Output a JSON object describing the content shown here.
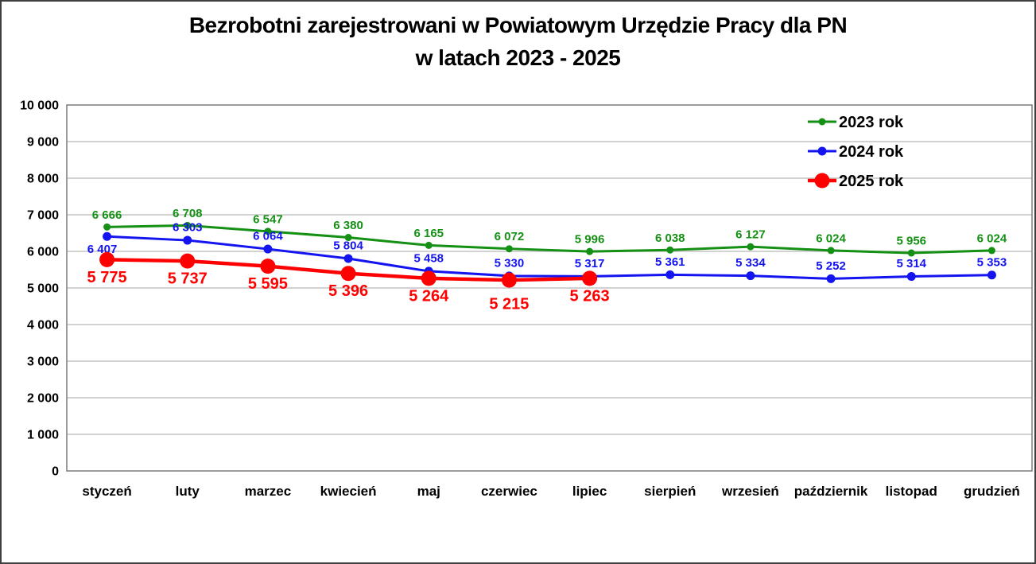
{
  "title": {
    "line1": "Bezrobotni zarejestrowani w Powiatowym Urzędzie Pracy dla PN",
    "line2": "w latach 2023 - 2025"
  },
  "chart_data": {
    "type": "line",
    "title": "Bezrobotni zarejestrowani w Powiatowym Urzędzie Pracy dla PN w latach 2023 - 2025",
    "categories": [
      "styczeń",
      "luty",
      "marzec",
      "kwiecień",
      "maj",
      "czerwiec",
      "lipiec",
      "sierpień",
      "wrzesień",
      "październik",
      "listopad",
      "grudzień"
    ],
    "series": [
      {
        "name": "2023 rok",
        "color": "#149014",
        "values": [
          6666,
          6708,
          6547,
          6380,
          6165,
          6072,
          5996,
          6038,
          6127,
          6024,
          5956,
          6024
        ],
        "label_position": "above"
      },
      {
        "name": "2024 rok",
        "color": "#1414f0",
        "values": [
          6407,
          6303,
          6064,
          5804,
          5458,
          5330,
          5317,
          5361,
          5334,
          5252,
          5314,
          5353
        ],
        "label_position": "above",
        "label_position_overrides": {
          "0": "below"
        },
        "label_dx_overrides": {
          "0": -6
        }
      },
      {
        "name": "2025 rok",
        "color": "#fe0000",
        "values": [
          5775,
          5737,
          5595,
          5396,
          5264,
          5215,
          5263
        ],
        "label_position": "below",
        "label_dy_overrides": {
          "5": 8
        }
      }
    ],
    "xlabel": "",
    "ylabel": "",
    "ylim": [
      0,
      10000
    ],
    "ytick_step": 1000,
    "ytick_labels": [
      "0",
      "1 000",
      "2 000",
      "3 000",
      "4 000",
      "5 000",
      "6 000",
      "7 000",
      "8 000",
      "9 000",
      "10 000"
    ],
    "grid": true,
    "legend": {
      "position": "top-right",
      "entries": [
        "2023 rok",
        "2024 rok",
        "2025 rok"
      ]
    }
  },
  "colors": {
    "series_2023": "#149014",
    "series_2024": "#1414f0",
    "series_2025": "#fe0000",
    "gridline": "#c3c3c3",
    "plot_border": "#8a8a8a",
    "text": "#000000",
    "background": "#ffffff",
    "frame_border": "#3f3f3f"
  }
}
